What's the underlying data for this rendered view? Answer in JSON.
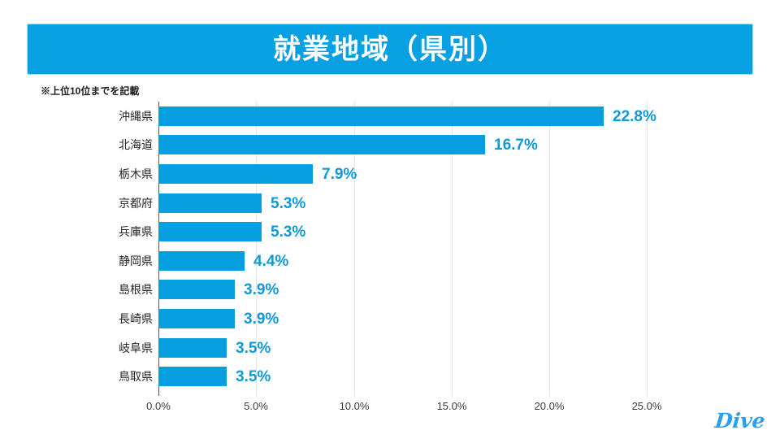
{
  "header": {
    "title": "就業地域（県別）"
  },
  "note": "※上位10位までを記載",
  "footer": {
    "logo_text": "Dive"
  },
  "colors": {
    "banner": "#07a0e2",
    "bar": "#089fe0",
    "value_label": "#0e9ad8",
    "gridline": "#e4e4e4",
    "axis_line": "#555555",
    "logo": "#2ba0ea"
  },
  "chart_data": {
    "type": "bar",
    "orientation": "horizontal",
    "title": "就業地域（県別）",
    "categories": [
      "沖縄県",
      "北海道",
      "栃木県",
      "京都府",
      "兵庫県",
      "静岡県",
      "島根県",
      "長崎県",
      "岐阜県",
      "鳥取県"
    ],
    "values": [
      22.8,
      16.7,
      7.9,
      5.3,
      5.3,
      4.4,
      3.9,
      3.9,
      3.5,
      3.5
    ],
    "value_labels": [
      "22.8%",
      "16.7%",
      "7.9%",
      "5.3%",
      "5.3%",
      "4.4%",
      "3.9%",
      "3.9%",
      "3.5%",
      "3.5%"
    ],
    "x_ticks": [
      "0.0%",
      "5.0%",
      "10.0%",
      "15.0%",
      "20.0%",
      "25.0%"
    ],
    "xlim": [
      0,
      25
    ],
    "grid": true,
    "legend": null
  }
}
